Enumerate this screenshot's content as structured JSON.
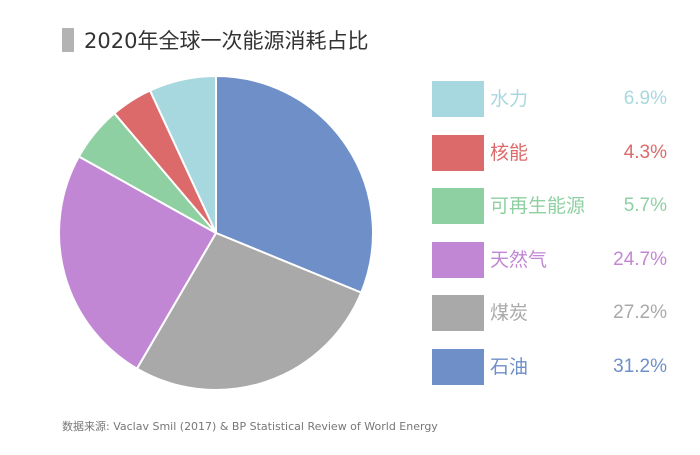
{
  "chart_data": {
    "type": "pie",
    "title": "2020年全球一次能源消耗占比",
    "slices": [
      {
        "label": "石油",
        "value": 31.2,
        "value_label": "31.2%",
        "color": "#6f8fc9"
      },
      {
        "label": "煤炭",
        "value": 27.2,
        "value_label": "27.2%",
        "color": "#a9a9a9"
      },
      {
        "label": "天然气",
        "value": 24.7,
        "value_label": "24.7%",
        "color": "#c287d4"
      },
      {
        "label": "可再生能源",
        "value": 5.7,
        "value_label": "5.7%",
        "color": "#8fd0a2"
      },
      {
        "label": "核能",
        "value": 4.3,
        "value_label": "4.3%",
        "color": "#dc6a6a"
      },
      {
        "label": "水力",
        "value": 6.9,
        "value_label": "6.9%",
        "color": "#a8d8df"
      }
    ],
    "legend": {
      "placement": "right"
    },
    "start_angle": "top",
    "direction": "clockwise"
  },
  "source_text": "数据来源: Vaclav Smil (2017) & BP Statistical Review of World Energy"
}
